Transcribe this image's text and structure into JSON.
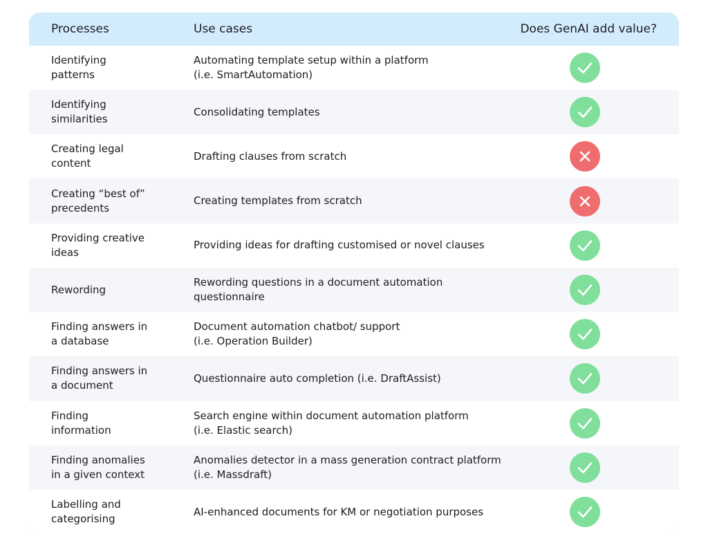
{
  "header": {
    "process": "Processes",
    "use_case": "Use cases",
    "value": "Does GenAI add value?"
  },
  "rows": [
    {
      "process": [
        "Identifying",
        "patterns"
      ],
      "use_case": [
        "Automating template setup within a platform",
        "(i.e. SmartAutomation)"
      ],
      "adds_value": true
    },
    {
      "process": [
        "Identifying",
        "similarities"
      ],
      "use_case": [
        "Consolidating templates"
      ],
      "adds_value": true
    },
    {
      "process": [
        "Creating legal",
        "content"
      ],
      "use_case": [
        "Drafting clauses from scratch"
      ],
      "adds_value": false
    },
    {
      "process": [
        "Creating “best of”",
        "precedents"
      ],
      "use_case": [
        "Creating templates from scratch"
      ],
      "adds_value": false
    },
    {
      "process": [
        "Providing creative",
        "ideas"
      ],
      "use_case": [
        "Providing ideas for drafting customised or novel clauses"
      ],
      "adds_value": true
    },
    {
      "process": [
        "Rewording"
      ],
      "use_case": [
        "Rewording questions in a document automation",
        "questionnaire"
      ],
      "adds_value": true
    },
    {
      "process": [
        "Finding answers in",
        "a database"
      ],
      "use_case": [
        "Document automation chatbot/ support",
        "(i.e. Operation Builder)"
      ],
      "adds_value": true
    },
    {
      "process": [
        "Finding answers in",
        "a document"
      ],
      "use_case": [
        "Questionnaire auto completion (i.e. DraftAssist)"
      ],
      "adds_value": true
    },
    {
      "process": [
        "Finding",
        "information"
      ],
      "use_case": [
        "Search engine within document automation platform",
        "(i.e. Elastic search)"
      ],
      "adds_value": true
    },
    {
      "process": [
        "Finding anomalies",
        "in a given context"
      ],
      "use_case": [
        "Anomalies detector in a mass generation contract platform",
        "(i.e. Massdraft)"
      ],
      "adds_value": true
    },
    {
      "process": [
        "Labelling and",
        "categorising"
      ],
      "use_case": [
        "AI-enhanced documents for KM or negotiation purposes"
      ],
      "adds_value": true
    }
  ]
}
